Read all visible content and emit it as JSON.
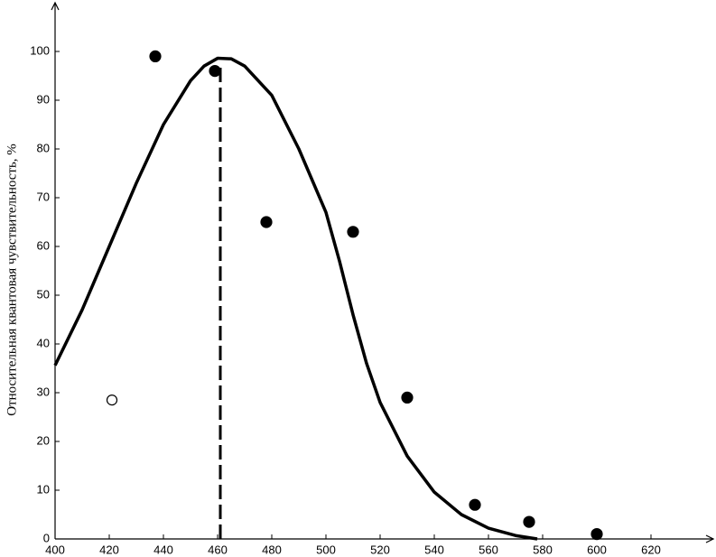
{
  "chart_data": {
    "type": "scatter",
    "y_label": "Относительная квантовая чувствительность, %",
    "xlim": [
      400,
      643
    ],
    "ylim": [
      0,
      110
    ],
    "xticks": [
      400,
      420,
      440,
      460,
      480,
      500,
      520,
      540,
      560,
      580,
      600,
      620
    ],
    "yticks": [
      0,
      10,
      20,
      30,
      40,
      50,
      60,
      70,
      80,
      90,
      100
    ],
    "series": [
      {
        "kind": "line",
        "color": "#000000",
        "x": [
          400,
          410,
          420,
          430,
          440,
          450,
          455,
          460,
          465,
          470,
          480,
          490,
          500,
          505,
          510,
          515,
          520,
          530,
          540,
          550,
          560,
          570,
          578
        ],
        "values": [
          35.6,
          47,
          60,
          73,
          85,
          94,
          97,
          98.6,
          98.5,
          97,
          91,
          80,
          67,
          57,
          46,
          36,
          28,
          17,
          9.6,
          5,
          2.2,
          0.7,
          0
        ]
      },
      {
        "kind": "points",
        "marker": "filled",
        "color": "#000000",
        "x": [
          437,
          459,
          478,
          510,
          530,
          555,
          575,
          600
        ],
        "values": [
          99,
          96,
          65,
          63,
          29,
          7,
          3.5,
          1
        ]
      },
      {
        "kind": "points",
        "marker": "hollow",
        "color": "#000000",
        "x": [
          421
        ],
        "values": [
          28.5
        ]
      }
    ],
    "vline": {
      "x": 461,
      "top": 97,
      "dashed": true
    }
  }
}
